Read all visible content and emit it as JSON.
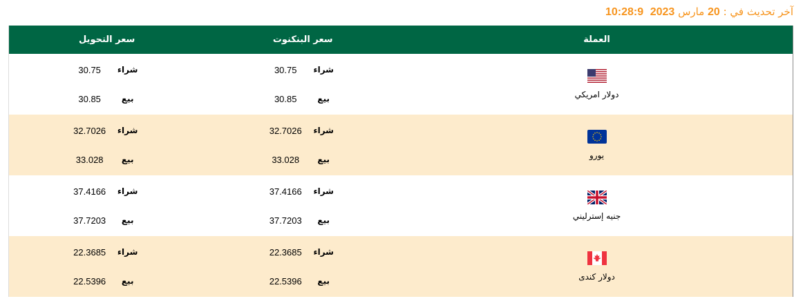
{
  "update": {
    "label": "آخر تحديث في :",
    "day": "20",
    "month": "مارس",
    "year": "2023",
    "time": "10:28:9"
  },
  "headers": {
    "currency": "العملة",
    "banknote": "سعر البنكنوت",
    "transfer": "سعر التحويل"
  },
  "labels": {
    "buy": "شراء",
    "sell": "بيع"
  },
  "rows": [
    {
      "name": "دولار امريكي",
      "flag": "us-flag-icon",
      "banknote": {
        "buy": "30.75",
        "sell": "30.85"
      },
      "transfer": {
        "buy": "30.75",
        "sell": "30.85"
      }
    },
    {
      "name": "يورو",
      "flag": "eu-flag-icon",
      "banknote": {
        "buy": "32.7026",
        "sell": "33.028"
      },
      "transfer": {
        "buy": "32.7026",
        "sell": "33.028"
      }
    },
    {
      "name": "جنيه إسترليني",
      "flag": "uk-flag-icon",
      "banknote": {
        "buy": "37.4166",
        "sell": "37.7203"
      },
      "transfer": {
        "buy": "37.4166",
        "sell": "37.7203"
      }
    },
    {
      "name": "دولار كندى",
      "flag": "ca-flag-icon",
      "banknote": {
        "buy": "22.3685",
        "sell": "22.5396"
      },
      "transfer": {
        "buy": "22.3685",
        "sell": "22.5396"
      }
    }
  ],
  "colors": {
    "header": "#006644",
    "alt_row": "#fdebcc",
    "update_text": "#f7941d"
  }
}
